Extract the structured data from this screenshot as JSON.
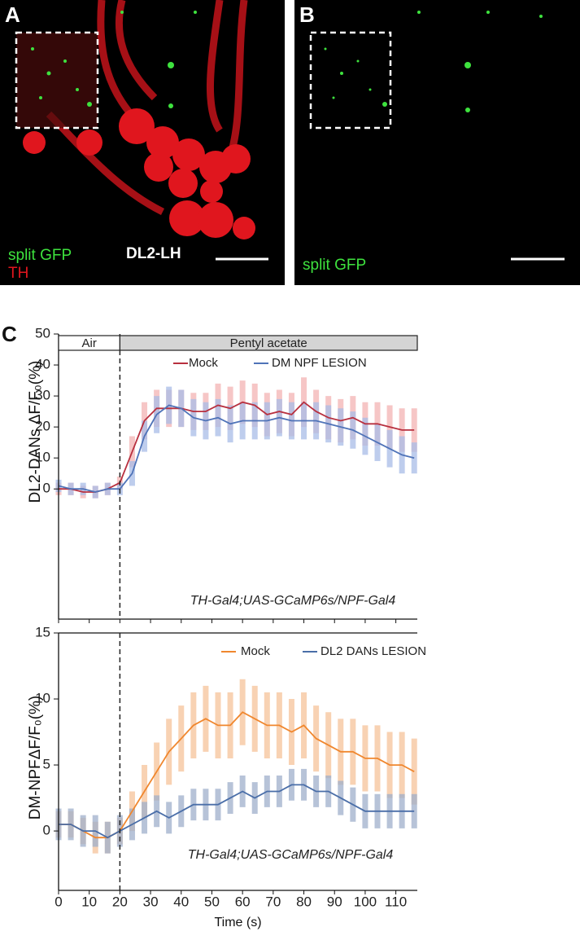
{
  "panels": [
    {
      "label": "A",
      "texts": [
        "split GFP",
        "TH",
        "DL2-LH"
      ]
    },
    {
      "label": "B",
      "texts": [
        "split GFP"
      ]
    }
  ],
  "panel_c_label": "C",
  "chart_data": [
    {
      "type": "line",
      "ylabel": "DL2-DANs  ΔF/F₀(%)",
      "annotation": "TH-Gal4;UAS-GCaMP6s/NPF-Gal4",
      "stimuli": [
        {
          "label": "Air",
          "start": 0,
          "end": 20
        },
        {
          "label": "Pentyl acetate",
          "start": 20,
          "end": 117
        }
      ],
      "stimulus_onset": 20,
      "xlim": [
        0,
        117
      ],
      "ylim": [
        -42,
        50
      ],
      "yticks": [
        0,
        10,
        20,
        30,
        40,
        50
      ],
      "x": [
        0,
        4,
        8,
        12,
        16,
        20,
        24,
        28,
        32,
        36,
        40,
        44,
        48,
        52,
        56,
        60,
        64,
        68,
        72,
        76,
        80,
        84,
        88,
        92,
        96,
        100,
        104,
        108,
        112,
        116
      ],
      "series": [
        {
          "name": "Mock",
          "color": "#b8303f",
          "band_color": "#f4b4b4",
          "values": [
            0,
            0,
            -1,
            -1,
            0,
            2,
            12,
            22,
            26,
            26,
            26,
            25,
            25,
            27,
            26,
            28,
            27,
            24,
            25,
            24,
            28,
            25,
            23,
            22,
            23,
            21,
            21,
            20,
            19,
            19
          ],
          "errors": [
            2,
            2,
            2,
            2,
            2,
            2,
            5,
            6,
            6,
            6,
            6,
            6,
            6,
            7,
            7,
            7,
            7,
            7,
            7,
            7,
            8,
            7,
            7,
            7,
            7,
            7,
            7,
            7,
            7,
            7
          ]
        },
        {
          "name": "DM NPF LESION",
          "color": "#4f73b8",
          "band_color": "#a9bde8",
          "values": [
            1,
            0,
            0,
            -1,
            0,
            0,
            5,
            17,
            24,
            27,
            26,
            23,
            22,
            23,
            21,
            22,
            22,
            22,
            23,
            22,
            22,
            22,
            21,
            20,
            19,
            17,
            15,
            13,
            11,
            10
          ],
          "errors": [
            2,
            2,
            2,
            2,
            2,
            2,
            4,
            5,
            6,
            6,
            6,
            6,
            6,
            6,
            6,
            6,
            6,
            6,
            6,
            6,
            6,
            6,
            6,
            6,
            6,
            6,
            6,
            6,
            6,
            5
          ]
        }
      ]
    },
    {
      "type": "line",
      "ylabel": "DM-NPFΔF/F₀(%)",
      "xlabel": "Time (s)",
      "annotation": "TH-Gal4;UAS-GCaMP6s/NPF-Gal4",
      "stimulus_onset": 20,
      "xlim": [
        0,
        117
      ],
      "ylim": [
        -4.5,
        15
      ],
      "yticks": [
        0,
        5,
        10,
        15
      ],
      "xticks": [
        0,
        10,
        20,
        30,
        40,
        50,
        60,
        70,
        80,
        90,
        100,
        110
      ],
      "x": [
        0,
        4,
        8,
        12,
        16,
        20,
        24,
        28,
        32,
        36,
        40,
        44,
        48,
        52,
        56,
        60,
        64,
        68,
        72,
        76,
        80,
        84,
        88,
        92,
        96,
        100,
        104,
        108,
        112,
        116
      ],
      "series": [
        {
          "name": "Mock",
          "color": "#f0872e",
          "band_color": "#f6c49a",
          "values": [
            0.5,
            0.5,
            0,
            -0.5,
            -0.5,
            0,
            1.5,
            3,
            4.5,
            6,
            7,
            8,
            8.5,
            8,
            8,
            9,
            8.5,
            8,
            8,
            7.5,
            8,
            7,
            6.5,
            6,
            6,
            5.5,
            5.5,
            5,
            5,
            4.5
          ],
          "errors": [
            1,
            1,
            1,
            1.2,
            1.2,
            1,
            1.5,
            2,
            2.2,
            2.5,
            2.5,
            2.5,
            2.5,
            2.5,
            2.5,
            2.5,
            2.5,
            2.5,
            2.5,
            2.5,
            2.5,
            2.5,
            2.5,
            2.5,
            2.5,
            2.5,
            2.5,
            2.5,
            2.5,
            2.5
          ]
        },
        {
          "name": "DL2 DANs LESION",
          "color": "#4a6ea8",
          "band_color": "#9fb0cb",
          "values": [
            0.5,
            0.5,
            0,
            0,
            -0.5,
            0,
            0.5,
            1,
            1.5,
            1,
            1.5,
            2,
            2,
            2,
            2.5,
            3,
            2.5,
            3,
            3,
            3.5,
            3.5,
            3,
            3,
            2.5,
            2,
            1.5,
            1.5,
            1.5,
            1.5,
            1.5
          ],
          "errors": [
            1.2,
            1.2,
            1.2,
            1.2,
            1.2,
            1.2,
            1.2,
            1.2,
            1.2,
            1.2,
            1.2,
            1.2,
            1.2,
            1.2,
            1.2,
            1.2,
            1.2,
            1.2,
            1.2,
            1.2,
            1.2,
            1.2,
            1.2,
            1.3,
            1.3,
            1.3,
            1.3,
            1.3,
            1.3,
            1.3
          ]
        }
      ]
    }
  ]
}
